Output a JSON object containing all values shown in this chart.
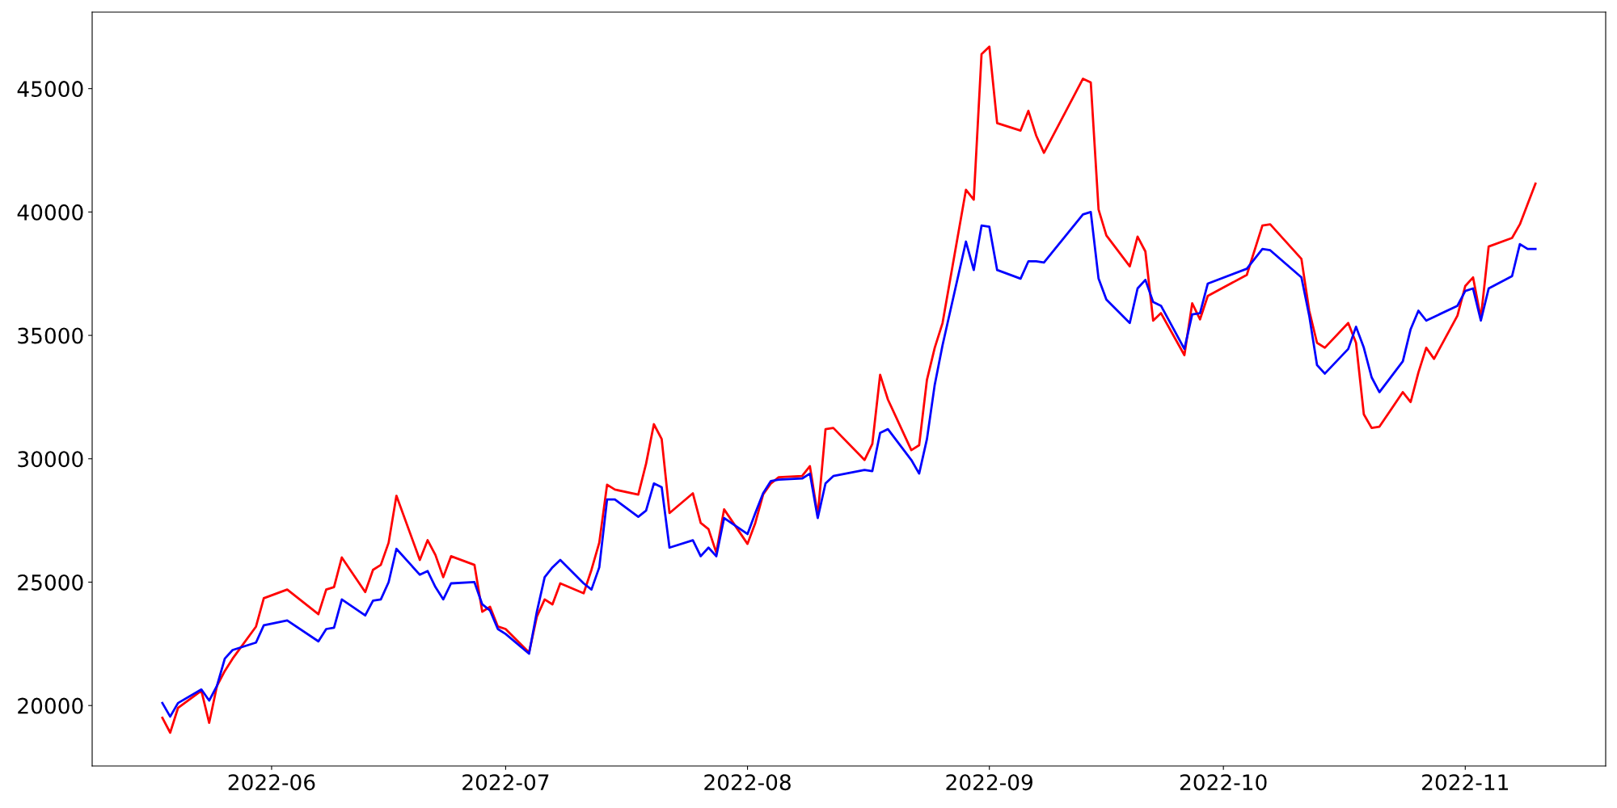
{
  "chart_data": {
    "type": "line",
    "xlim": [
      "2022-05-09",
      "2022-11-19"
    ],
    "ylim": [
      17550,
      48100
    ],
    "xticks": [
      "2022-06",
      "2022-07",
      "2022-08",
      "2022-09",
      "2022-10",
      "2022-11"
    ],
    "yticks": [
      20000,
      25000,
      30000,
      35000,
      40000,
      45000
    ],
    "grid": false,
    "marker": "none",
    "line_style": "solid",
    "series": [
      {
        "color": "#ff0000",
        "x": [
          "2022-05-18",
          "2022-05-19",
          "2022-05-20",
          "2022-05-23",
          "2022-05-24",
          "2022-05-25",
          "2022-05-26",
          "2022-05-27",
          "2022-05-30",
          "2022-05-31",
          "2022-06-03",
          "2022-06-07",
          "2022-06-08",
          "2022-06-09",
          "2022-06-10",
          "2022-06-13",
          "2022-06-14",
          "2022-06-15",
          "2022-06-16",
          "2022-06-17",
          "2022-06-20",
          "2022-06-21",
          "2022-06-22",
          "2022-06-23",
          "2022-06-24",
          "2022-06-27",
          "2022-06-28",
          "2022-06-29",
          "2022-06-30",
          "2022-07-01",
          "2022-07-04",
          "2022-07-05",
          "2022-07-06",
          "2022-07-07",
          "2022-07-08",
          "2022-07-11",
          "2022-07-12",
          "2022-07-13",
          "2022-07-14",
          "2022-07-15",
          "2022-07-18",
          "2022-07-19",
          "2022-07-20",
          "2022-07-21",
          "2022-07-22",
          "2022-07-25",
          "2022-07-26",
          "2022-07-27",
          "2022-07-28",
          "2022-07-29",
          "2022-08-01",
          "2022-08-02",
          "2022-08-03",
          "2022-08-04",
          "2022-08-05",
          "2022-08-08",
          "2022-08-09",
          "2022-08-10",
          "2022-08-11",
          "2022-08-12",
          "2022-08-16",
          "2022-08-17",
          "2022-08-18",
          "2022-08-19",
          "2022-08-22",
          "2022-08-23",
          "2022-08-24",
          "2022-08-25",
          "2022-08-26",
          "2022-08-29",
          "2022-08-30",
          "2022-08-31",
          "2022-09-01",
          "2022-09-02",
          "2022-09-05",
          "2022-09-06",
          "2022-09-07",
          "2022-09-08",
          "2022-09-13",
          "2022-09-14",
          "2022-09-15",
          "2022-09-16",
          "2022-09-19",
          "2022-09-20",
          "2022-09-21",
          "2022-09-22",
          "2022-09-23",
          "2022-09-26",
          "2022-09-27",
          "2022-09-28",
          "2022-09-29",
          "2022-10-04",
          "2022-10-06",
          "2022-10-07",
          "2022-10-11",
          "2022-10-12",
          "2022-10-13",
          "2022-10-14",
          "2022-10-17",
          "2022-10-18",
          "2022-10-19",
          "2022-10-20",
          "2022-10-21",
          "2022-10-24",
          "2022-10-25",
          "2022-10-26",
          "2022-10-27",
          "2022-10-28",
          "2022-10-31",
          "2022-11-01",
          "2022-11-02",
          "2022-11-03",
          "2022-11-04",
          "2022-11-07",
          "2022-11-08",
          "2022-11-10"
        ],
        "values": [
          19500,
          18900,
          19900,
          20600,
          19300,
          20800,
          21400,
          21900,
          23200,
          24350,
          24700,
          23700,
          24700,
          24800,
          26000,
          24600,
          25500,
          25700,
          26600,
          28500,
          25900,
          26700,
          26100,
          25200,
          26050,
          25700,
          23800,
          24000,
          23200,
          23100,
          22150,
          23600,
          24300,
          24100,
          24950,
          24550,
          25500,
          26600,
          28950,
          28750,
          28550,
          29800,
          31400,
          30800,
          27800,
          28600,
          27400,
          27150,
          26200,
          27950,
          26550,
          27400,
          28550,
          29000,
          29250,
          29300,
          29700,
          27700,
          31200,
          31250,
          29950,
          30600,
          33400,
          32400,
          30350,
          30550,
          33200,
          34500,
          35500,
          40900,
          40500,
          46400,
          46700,
          43600,
          43300,
          44100,
          43100,
          42400,
          45400,
          45250,
          40100,
          39050,
          37800,
          39000,
          38400,
          35600,
          35900,
          34200,
          36300,
          35650,
          36600,
          37450,
          39450,
          39500,
          38100,
          36000,
          34700,
          34500,
          35500,
          34700,
          31800,
          31250,
          31300,
          32700,
          32300,
          33500,
          34500,
          34050,
          35800,
          37000,
          37350,
          35700,
          38600,
          38950,
          39500,
          41150
        ]
      },
      {
        "color": "#0000ff",
        "x": [
          "2022-05-18",
          "2022-05-19",
          "2022-05-20",
          "2022-05-23",
          "2022-05-24",
          "2022-05-25",
          "2022-05-26",
          "2022-05-27",
          "2022-05-30",
          "2022-05-31",
          "2022-06-03",
          "2022-06-07",
          "2022-06-08",
          "2022-06-09",
          "2022-06-10",
          "2022-06-13",
          "2022-06-14",
          "2022-06-15",
          "2022-06-16",
          "2022-06-17",
          "2022-06-20",
          "2022-06-21",
          "2022-06-22",
          "2022-06-23",
          "2022-06-24",
          "2022-06-27",
          "2022-06-28",
          "2022-06-29",
          "2022-06-30",
          "2022-07-01",
          "2022-07-04",
          "2022-07-05",
          "2022-07-06",
          "2022-07-07",
          "2022-07-08",
          "2022-07-11",
          "2022-07-12",
          "2022-07-13",
          "2022-07-14",
          "2022-07-15",
          "2022-07-18",
          "2022-07-19",
          "2022-07-20",
          "2022-07-21",
          "2022-07-22",
          "2022-07-25",
          "2022-07-26",
          "2022-07-27",
          "2022-07-28",
          "2022-07-29",
          "2022-08-01",
          "2022-08-02",
          "2022-08-03",
          "2022-08-04",
          "2022-08-05",
          "2022-08-08",
          "2022-08-09",
          "2022-08-10",
          "2022-08-11",
          "2022-08-12",
          "2022-08-16",
          "2022-08-17",
          "2022-08-18",
          "2022-08-19",
          "2022-08-22",
          "2022-08-23",
          "2022-08-24",
          "2022-08-25",
          "2022-08-26",
          "2022-08-29",
          "2022-08-30",
          "2022-08-31",
          "2022-09-01",
          "2022-09-02",
          "2022-09-05",
          "2022-09-06",
          "2022-09-07",
          "2022-09-08",
          "2022-09-13",
          "2022-09-14",
          "2022-09-15",
          "2022-09-16",
          "2022-09-19",
          "2022-09-20",
          "2022-09-21",
          "2022-09-22",
          "2022-09-23",
          "2022-09-26",
          "2022-09-27",
          "2022-09-28",
          "2022-09-29",
          "2022-10-04",
          "2022-10-06",
          "2022-10-07",
          "2022-10-11",
          "2022-10-12",
          "2022-10-13",
          "2022-10-14",
          "2022-10-17",
          "2022-10-18",
          "2022-10-19",
          "2022-10-20",
          "2022-10-21",
          "2022-10-24",
          "2022-10-25",
          "2022-10-26",
          "2022-10-27",
          "2022-10-28",
          "2022-10-31",
          "2022-11-01",
          "2022-11-02",
          "2022-11-03",
          "2022-11-04",
          "2022-11-07",
          "2022-11-08",
          "2022-11-09",
          "2022-11-10"
        ],
        "values": [
          20100,
          19550,
          20100,
          20650,
          20200,
          20800,
          21900,
          22250,
          22550,
          23250,
          23450,
          22600,
          23100,
          23150,
          24300,
          23650,
          24250,
          24300,
          25000,
          26350,
          25300,
          25450,
          24800,
          24300,
          24950,
          25000,
          24100,
          23850,
          23100,
          22900,
          22100,
          23800,
          25200,
          25600,
          25900,
          24950,
          24700,
          25600,
          28350,
          28350,
          27650,
          27900,
          29000,
          28850,
          26400,
          26700,
          26050,
          26400,
          26050,
          27600,
          26950,
          27800,
          28600,
          29100,
          29150,
          29200,
          29400,
          27600,
          29000,
          29300,
          29550,
          29500,
          31050,
          31200,
          29950,
          29400,
          30800,
          33000,
          34600,
          38800,
          37650,
          39450,
          39400,
          37650,
          37300,
          38000,
          38000,
          37950,
          39900,
          40000,
          37300,
          36450,
          35500,
          36900,
          37250,
          36350,
          36200,
          34450,
          35850,
          35900,
          37100,
          37700,
          38500,
          38450,
          37350,
          35800,
          33800,
          33450,
          34450,
          35350,
          34500,
          33300,
          32700,
          33950,
          35250,
          36000,
          35600,
          35750,
          36200,
          36800,
          36900,
          35600,
          36900,
          37400,
          38700,
          38500,
          38500
        ]
      }
    ]
  }
}
